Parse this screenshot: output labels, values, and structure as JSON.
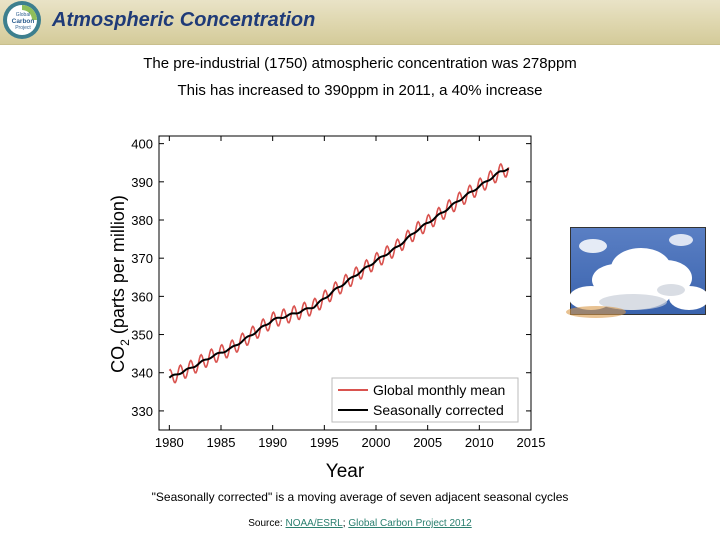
{
  "header": {
    "title": "Atmospheric Concentration",
    "logo_text": [
      "Global",
      "Carbon",
      "Project"
    ]
  },
  "subtitle": {
    "line1": "The pre-industrial (1750) atmospheric concentration was 278ppm",
    "line2": "This has increased to 390ppm in 2011, a 40% increase"
  },
  "chart_data": {
    "type": "line",
    "title": "",
    "xlabel": "Year",
    "ylabel_main": "CO",
    "ylabel_sub": "2",
    "ylabel_rest": " (parts per million)",
    "xlim": [
      1979,
      2015
    ],
    "ylim": [
      325,
      402
    ],
    "x_ticks": [
      1980,
      1985,
      1990,
      1995,
      2000,
      2005,
      2010,
      2015
    ],
    "y_ticks": [
      330,
      340,
      350,
      360,
      370,
      380,
      390,
      400
    ],
    "legend_position": "bottom-right",
    "series": [
      {
        "name": "Global monthly mean",
        "color": "#d9534f",
        "x_start": 1980,
        "x_end": 2012.8,
        "seasonal_amplitude": 2.0
      },
      {
        "name": "Seasonally corrected",
        "color": "#000000",
        "x": [
          1980,
          1982,
          1984,
          1986,
          1988,
          1990,
          1992,
          1994,
          1996,
          1998,
          2000,
          2002,
          2004,
          2006,
          2008,
          2010,
          2012,
          2012.8
        ],
        "values": [
          338.7,
          341.1,
          344.1,
          346.4,
          350.0,
          353.8,
          355.4,
          357.3,
          361.6,
          365.5,
          369.3,
          372.8,
          377.4,
          381.1,
          385.1,
          388.8,
          392.6,
          393.5
        ]
      }
    ]
  },
  "footnotes": {
    "note": "\"Seasonally corrected\" is a moving average of seven adjacent seasonal cycles",
    "source_label": "Source: ",
    "source_link1": "NOAA/ESRL",
    "source_sep": "; ",
    "source_link2": "Global Carbon Project 2012"
  },
  "colors": {
    "title": "#1f3b78",
    "header_bg": "#ded6ad",
    "link": "#2a7f6f"
  }
}
